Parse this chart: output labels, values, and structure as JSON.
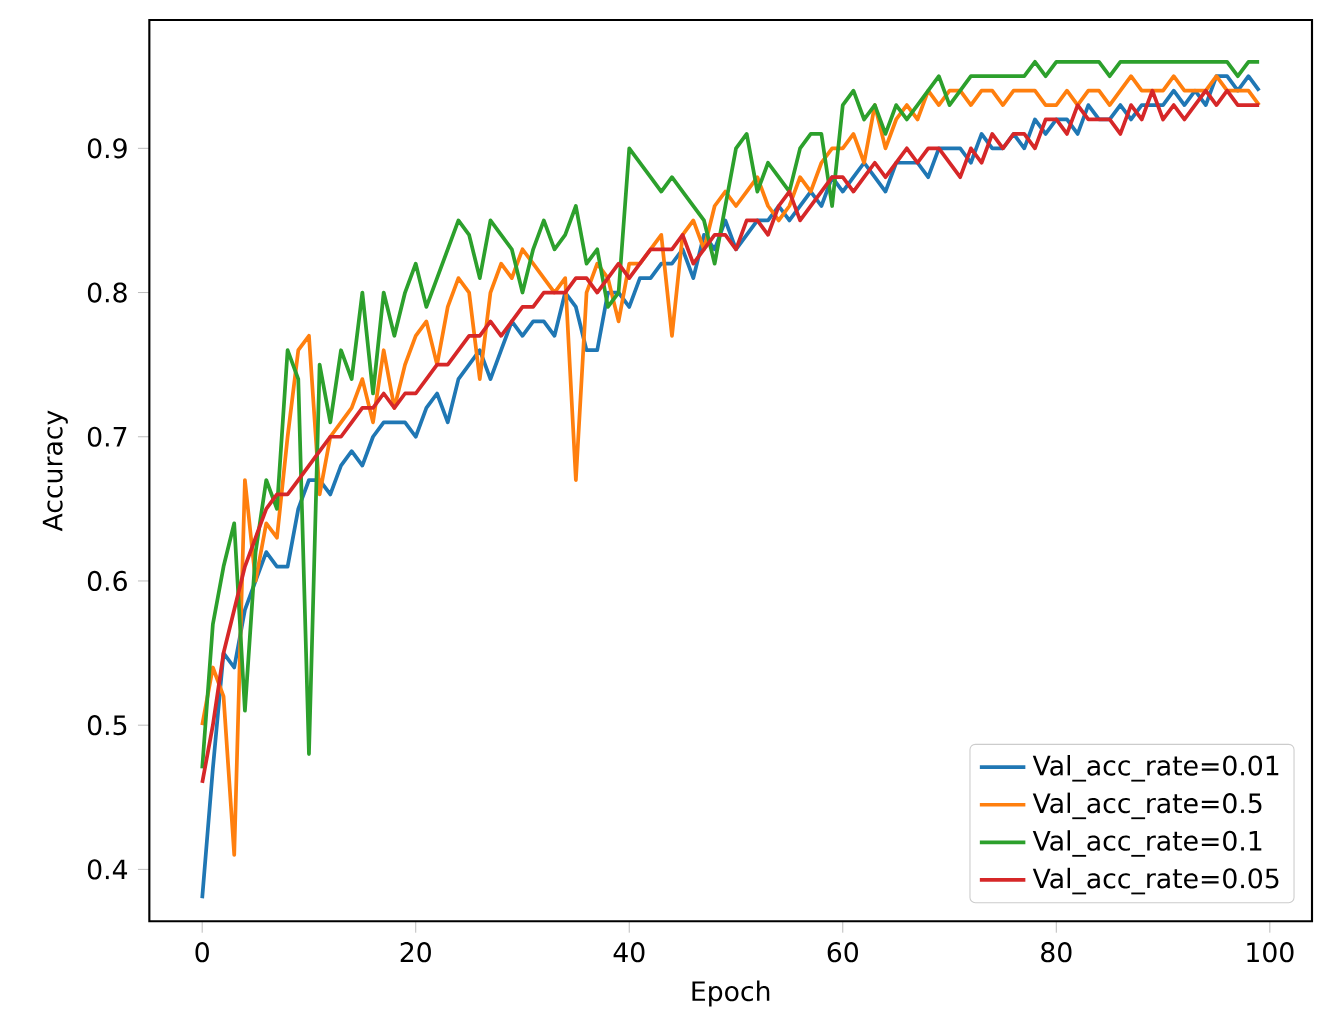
{
  "chart_data": {
    "type": "line",
    "xlabel": "Epoch",
    "ylabel": "Accuracy",
    "x": [
      0,
      1,
      2,
      3,
      4,
      5,
      6,
      7,
      8,
      9,
      10,
      11,
      12,
      13,
      14,
      15,
      16,
      17,
      18,
      19,
      20,
      21,
      22,
      23,
      24,
      25,
      26,
      27,
      28,
      29,
      30,
      31,
      32,
      33,
      34,
      35,
      36,
      37,
      38,
      39,
      40,
      41,
      42,
      43,
      44,
      45,
      46,
      47,
      48,
      49,
      50,
      51,
      52,
      53,
      54,
      55,
      56,
      57,
      58,
      59,
      60,
      61,
      62,
      63,
      64,
      65,
      66,
      67,
      68,
      69,
      70,
      71,
      72,
      73,
      74,
      75,
      76,
      77,
      78,
      79,
      80,
      81,
      82,
      83,
      84,
      85,
      86,
      87,
      88,
      89,
      90,
      91,
      92,
      93,
      94,
      95,
      96,
      97,
      98,
      99
    ],
    "series": [
      {
        "name": "Val_acc_rate=0.01",
        "color": "#1f77b4",
        "values": [
          0.38,
          0.47,
          0.55,
          0.54,
          0.58,
          0.6,
          0.62,
          0.61,
          0.61,
          0.65,
          0.67,
          0.67,
          0.66,
          0.68,
          0.69,
          0.68,
          0.7,
          0.71,
          0.71,
          0.71,
          0.7,
          0.72,
          0.73,
          0.71,
          0.74,
          0.75,
          0.76,
          0.74,
          0.76,
          0.78,
          0.77,
          0.78,
          0.78,
          0.77,
          0.8,
          0.79,
          0.76,
          0.76,
          0.8,
          0.8,
          0.79,
          0.81,
          0.81,
          0.82,
          0.82,
          0.83,
          0.81,
          0.84,
          0.83,
          0.85,
          0.83,
          0.84,
          0.85,
          0.85,
          0.86,
          0.85,
          0.86,
          0.87,
          0.86,
          0.88,
          0.87,
          0.88,
          0.89,
          0.88,
          0.87,
          0.89,
          0.89,
          0.89,
          0.88,
          0.9,
          0.9,
          0.9,
          0.89,
          0.91,
          0.9,
          0.9,
          0.91,
          0.9,
          0.92,
          0.91,
          0.92,
          0.92,
          0.91,
          0.93,
          0.92,
          0.92,
          0.93,
          0.92,
          0.93,
          0.93,
          0.93,
          0.94,
          0.93,
          0.94,
          0.93,
          0.95,
          0.95,
          0.94,
          0.95,
          0.94
        ]
      },
      {
        "name": "Val_acc_rate=0.5",
        "color": "#ff7f0e",
        "values": [
          0.5,
          0.54,
          0.52,
          0.41,
          0.67,
          0.6,
          0.64,
          0.63,
          0.7,
          0.76,
          0.77,
          0.66,
          0.7,
          0.71,
          0.72,
          0.74,
          0.71,
          0.76,
          0.72,
          0.75,
          0.77,
          0.78,
          0.75,
          0.79,
          0.81,
          0.8,
          0.74,
          0.8,
          0.82,
          0.81,
          0.83,
          0.82,
          0.81,
          0.8,
          0.81,
          0.67,
          0.8,
          0.82,
          0.81,
          0.78,
          0.82,
          0.82,
          0.83,
          0.84,
          0.77,
          0.84,
          0.85,
          0.83,
          0.86,
          0.87,
          0.86,
          0.87,
          0.88,
          0.86,
          0.85,
          0.86,
          0.88,
          0.87,
          0.89,
          0.9,
          0.9,
          0.91,
          0.89,
          0.93,
          0.9,
          0.92,
          0.93,
          0.92,
          0.94,
          0.93,
          0.94,
          0.94,
          0.93,
          0.94,
          0.94,
          0.93,
          0.94,
          0.94,
          0.94,
          0.93,
          0.93,
          0.94,
          0.93,
          0.94,
          0.94,
          0.93,
          0.94,
          0.95,
          0.94,
          0.94,
          0.94,
          0.95,
          0.94,
          0.94,
          0.94,
          0.95,
          0.94,
          0.94,
          0.94,
          0.93
        ]
      },
      {
        "name": "Val_acc_rate=0.1",
        "color": "#2ca02c",
        "values": [
          0.47,
          0.57,
          0.61,
          0.64,
          0.51,
          0.62,
          0.67,
          0.65,
          0.76,
          0.74,
          0.48,
          0.75,
          0.71,
          0.76,
          0.74,
          0.8,
          0.73,
          0.8,
          0.77,
          0.8,
          0.82,
          0.79,
          0.81,
          0.83,
          0.85,
          0.84,
          0.81,
          0.85,
          0.84,
          0.83,
          0.8,
          0.83,
          0.85,
          0.83,
          0.84,
          0.86,
          0.82,
          0.83,
          0.79,
          0.8,
          0.9,
          0.89,
          0.88,
          0.87,
          0.88,
          0.87,
          0.86,
          0.85,
          0.82,
          0.86,
          0.9,
          0.91,
          0.87,
          0.89,
          0.88,
          0.87,
          0.9,
          0.91,
          0.91,
          0.86,
          0.93,
          0.94,
          0.92,
          0.93,
          0.91,
          0.93,
          0.92,
          0.93,
          0.94,
          0.95,
          0.93,
          0.94,
          0.95,
          0.95,
          0.95,
          0.95,
          0.95,
          0.95,
          0.96,
          0.95,
          0.96,
          0.96,
          0.96,
          0.96,
          0.96,
          0.95,
          0.96,
          0.96,
          0.96,
          0.96,
          0.96,
          0.96,
          0.96,
          0.96,
          0.96,
          0.96,
          0.96,
          0.95,
          0.96,
          0.96
        ]
      },
      {
        "name": "Val_acc_rate=0.05",
        "color": "#d62728",
        "values": [
          0.46,
          0.5,
          0.55,
          0.58,
          0.61,
          0.63,
          0.65,
          0.66,
          0.66,
          0.67,
          0.68,
          0.69,
          0.7,
          0.7,
          0.71,
          0.72,
          0.72,
          0.73,
          0.72,
          0.73,
          0.73,
          0.74,
          0.75,
          0.75,
          0.76,
          0.77,
          0.77,
          0.78,
          0.77,
          0.78,
          0.79,
          0.79,
          0.8,
          0.8,
          0.8,
          0.81,
          0.81,
          0.8,
          0.81,
          0.82,
          0.81,
          0.82,
          0.83,
          0.83,
          0.83,
          0.84,
          0.82,
          0.83,
          0.84,
          0.84,
          0.83,
          0.85,
          0.85,
          0.84,
          0.86,
          0.87,
          0.85,
          0.86,
          0.87,
          0.88,
          0.88,
          0.87,
          0.88,
          0.89,
          0.88,
          0.89,
          0.9,
          0.89,
          0.9,
          0.9,
          0.89,
          0.88,
          0.9,
          0.89,
          0.91,
          0.9,
          0.91,
          0.91,
          0.9,
          0.92,
          0.92,
          0.91,
          0.93,
          0.92,
          0.92,
          0.92,
          0.91,
          0.93,
          0.92,
          0.94,
          0.92,
          0.93,
          0.92,
          0.93,
          0.94,
          0.93,
          0.94,
          0.93,
          0.93,
          0.93
        ]
      }
    ],
    "xlim": [
      -4.95,
      103.95
    ],
    "ylim": [
      0.364,
      0.989
    ],
    "xticks": [
      0,
      20,
      40,
      60,
      80,
      100
    ],
    "yticks": [
      0.4,
      0.5,
      0.6,
      0.7,
      0.8,
      0.9
    ],
    "legend": "bottom right",
    "marker": "none",
    "line_style": "solid"
  }
}
